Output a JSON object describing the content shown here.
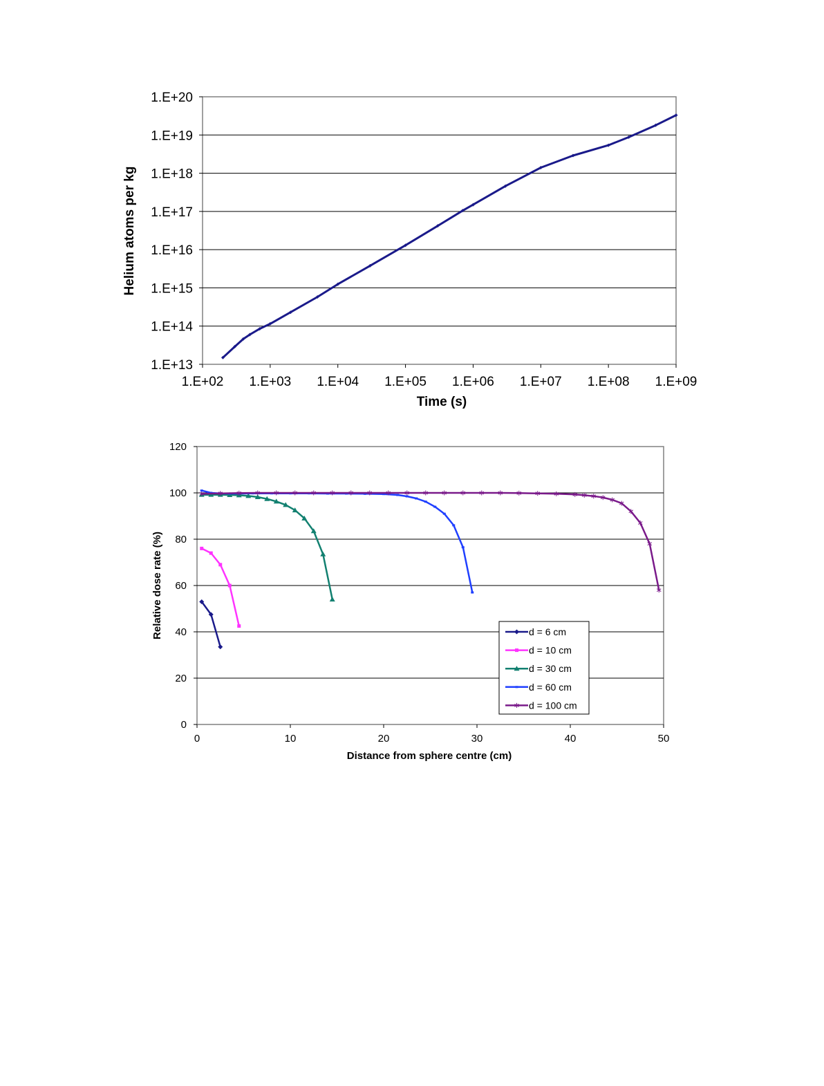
{
  "colors": {
    "helium": "#1a1a8a",
    "d6": "#1a1a8a",
    "d10": "#ff33ff",
    "d30": "#128070",
    "d60": "#1f3fff",
    "d100": "#7a1a8a",
    "grid": "#000000"
  },
  "chart_data": [
    {
      "type": "line",
      "xlabel": "Time (s)",
      "ylabel": "Helium atoms per kg",
      "xscale": "log",
      "yscale": "log",
      "xlim": [
        100,
        1000000000
      ],
      "ylim": [
        10000000000000,
        100000000000000000000
      ],
      "grid": "horizontal major gridlines",
      "x_tick_labels": [
        "1.E+02",
        "1.E+03",
        "1.E+04",
        "1.E+05",
        "1.E+06",
        "1.E+07",
        "1.E+08",
        "1.E+09"
      ],
      "y_tick_labels": [
        "1.E+13",
        "1.E+14",
        "1.E+15",
        "1.E+16",
        "1.E+17",
        "1.E+18",
        "1.E+19",
        "1.E+20"
      ],
      "series": [
        {
          "marker": "diamond",
          "points": [
            [
              200,
              15000000000000.0
            ],
            [
              300,
              29000000000000.0
            ],
            [
              400,
              46000000000000.0
            ],
            [
              500,
              60000000000000.0
            ],
            [
              700,
              85000000000000.0
            ],
            [
              1000,
              115000000000000.0
            ],
            [
              2000,
              230000000000000.0
            ],
            [
              5000,
              580000000000000.0
            ],
            [
              10000,
              1250000000000000.0
            ],
            [
              30000,
              3800000000000000.0
            ],
            [
              100000,
              1.3e+16
            ],
            [
              300000,
              4.2e+16
            ],
            [
              700000,
              1.05e+17
            ],
            [
              1000000,
              1.5e+17
            ],
            [
              3000000,
              4.6e+17
            ],
            [
              10000000,
              1.4e+18
            ],
            [
              30000000,
              2.9e+18
            ],
            [
              100000000,
              5.4e+18
            ],
            [
              200000000,
              8.8e+18
            ],
            [
              500000000,
              1.8e+19
            ],
            [
              1000000000,
              3.3e+19
            ]
          ]
        }
      ]
    },
    {
      "type": "line",
      "xlabel": "Distance from sphere centre (cm)",
      "ylabel": "Relative dose rate (%)",
      "xlim": [
        0,
        50
      ],
      "ylim": [
        0,
        120
      ],
      "grid": "horizontal major gridlines",
      "x_tick_labels": [
        "0",
        "10",
        "20",
        "30",
        "40",
        "50"
      ],
      "y_tick_labels": [
        "0",
        "20",
        "40",
        "60",
        "80",
        "100",
        "120"
      ],
      "legend_position": "bottom-right",
      "series": [
        {
          "name": "d = 6 cm",
          "marker": "diamond",
          "color_key": "d6",
          "points": [
            [
              0.5,
              53
            ],
            [
              1.5,
              47.5
            ],
            [
              2.5,
              33.5
            ]
          ]
        },
        {
          "name": "d = 10 cm",
          "marker": "square",
          "color_key": "d10",
          "points": [
            [
              0.5,
              76
            ],
            [
              1.5,
              74
            ],
            [
              2.5,
              69
            ],
            [
              3.5,
              60
            ],
            [
              4.5,
              42.5
            ]
          ]
        },
        {
          "name": "d = 30 cm",
          "marker": "triangle",
          "color_key": "d30",
          "points": [
            [
              0.5,
              99.2
            ],
            [
              1.5,
              99.2
            ],
            [
              2.5,
              99.2
            ],
            [
              3.5,
              99.1
            ],
            [
              4.5,
              99
            ],
            [
              5.5,
              98.7
            ],
            [
              6.5,
              98.2
            ],
            [
              7.5,
              97.4
            ],
            [
              8.5,
              96.3
            ],
            [
              9.5,
              94.8
            ],
            [
              10.5,
              92.5
            ],
            [
              11.5,
              89
            ],
            [
              12.5,
              83.5
            ],
            [
              13.5,
              73.5
            ],
            [
              14.5,
              54
            ]
          ]
        },
        {
          "name": "d = 60 cm",
          "marker": "dash",
          "color_key": "d60",
          "points": [
            [
              0.5,
              101
            ],
            [
              1.5,
              100
            ],
            [
              2.5,
              99.8
            ],
            [
              3.5,
              99.7
            ],
            [
              4.5,
              99.7
            ],
            [
              6,
              99.8
            ],
            [
              8,
              99.8
            ],
            [
              10,
              99.8
            ],
            [
              12,
              99.8
            ],
            [
              14,
              99.7
            ],
            [
              16,
              99.7
            ],
            [
              18,
              99.6
            ],
            [
              20,
              99.5
            ],
            [
              21.5,
              99.1
            ],
            [
              22.5,
              98.5
            ],
            [
              23.5,
              97.6
            ],
            [
              24.5,
              96.2
            ],
            [
              25.5,
              94
            ],
            [
              26.5,
              91
            ],
            [
              27.5,
              86
            ],
            [
              28.5,
              76.5
            ],
            [
              29.5,
              57
            ]
          ]
        },
        {
          "name": "d = 100 cm",
          "marker": "asterisk",
          "color_key": "d100",
          "points": [
            [
              0.5,
              99.6
            ],
            [
              2.5,
              99.8
            ],
            [
              4.5,
              99.9
            ],
            [
              6.5,
              100
            ],
            [
              8.5,
              100
            ],
            [
              10.5,
              100
            ],
            [
              12.5,
              100
            ],
            [
              14.5,
              100
            ],
            [
              16.5,
              100
            ],
            [
              18.5,
              100
            ],
            [
              20.5,
              100
            ],
            [
              22.5,
              100
            ],
            [
              24.5,
              100
            ],
            [
              26.5,
              100
            ],
            [
              28.5,
              100
            ],
            [
              30.5,
              100
            ],
            [
              32.5,
              100
            ],
            [
              34.5,
              99.9
            ],
            [
              36.5,
              99.8
            ],
            [
              38.5,
              99.6
            ],
            [
              40.5,
              99.3
            ],
            [
              41.5,
              99
            ],
            [
              42.5,
              98.6
            ],
            [
              43.5,
              98
            ],
            [
              44.5,
              97
            ],
            [
              45.5,
              95.5
            ],
            [
              46.5,
              92
            ],
            [
              47.5,
              87
            ],
            [
              48.5,
              78
            ],
            [
              49.5,
              58
            ]
          ]
        }
      ]
    }
  ]
}
